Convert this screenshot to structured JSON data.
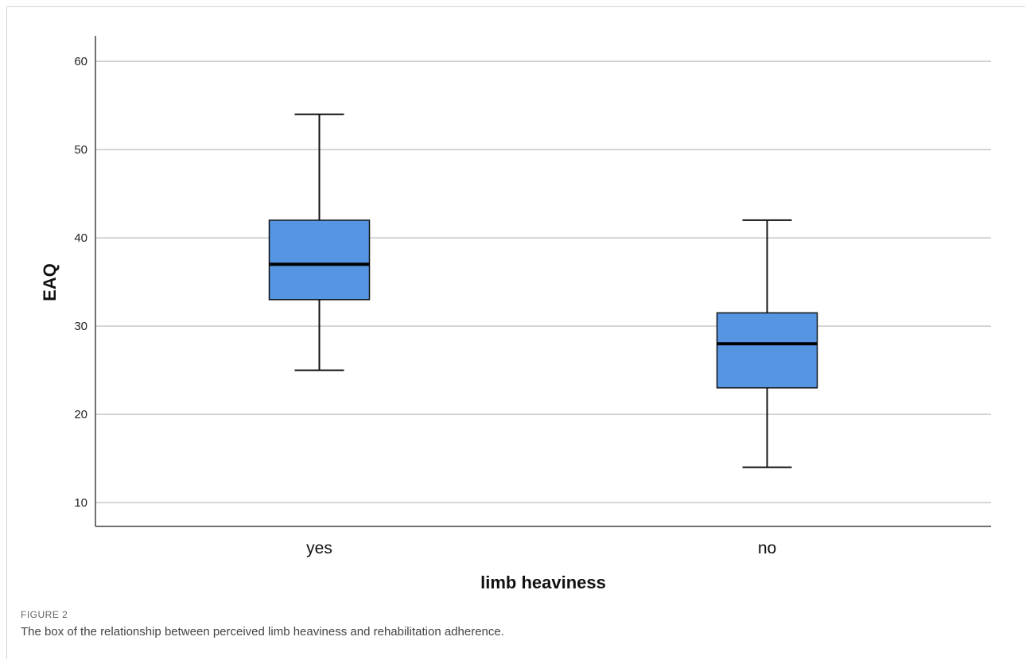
{
  "figure": {
    "label": "FIGURE 2",
    "caption": "The box of the relationship between perceived limb heaviness and rehabilitation adherence."
  },
  "chart_data": {
    "type": "box",
    "xlabel": "limb heaviness",
    "ylabel": "EAQ",
    "ylim": [
      7.3,
      62.9
    ],
    "yticks": [
      10,
      20,
      30,
      40,
      50,
      60
    ],
    "grid": true,
    "categories": [
      "yes",
      "no"
    ],
    "boxes": [
      {
        "category": "yes",
        "min": 25,
        "q1": 33,
        "median": 37,
        "q3": 42,
        "max": 54
      },
      {
        "category": "no",
        "min": 14,
        "q1": 23,
        "median": 28,
        "q3": 31.5,
        "max": 42
      }
    ],
    "box_color": "#5595e2"
  }
}
